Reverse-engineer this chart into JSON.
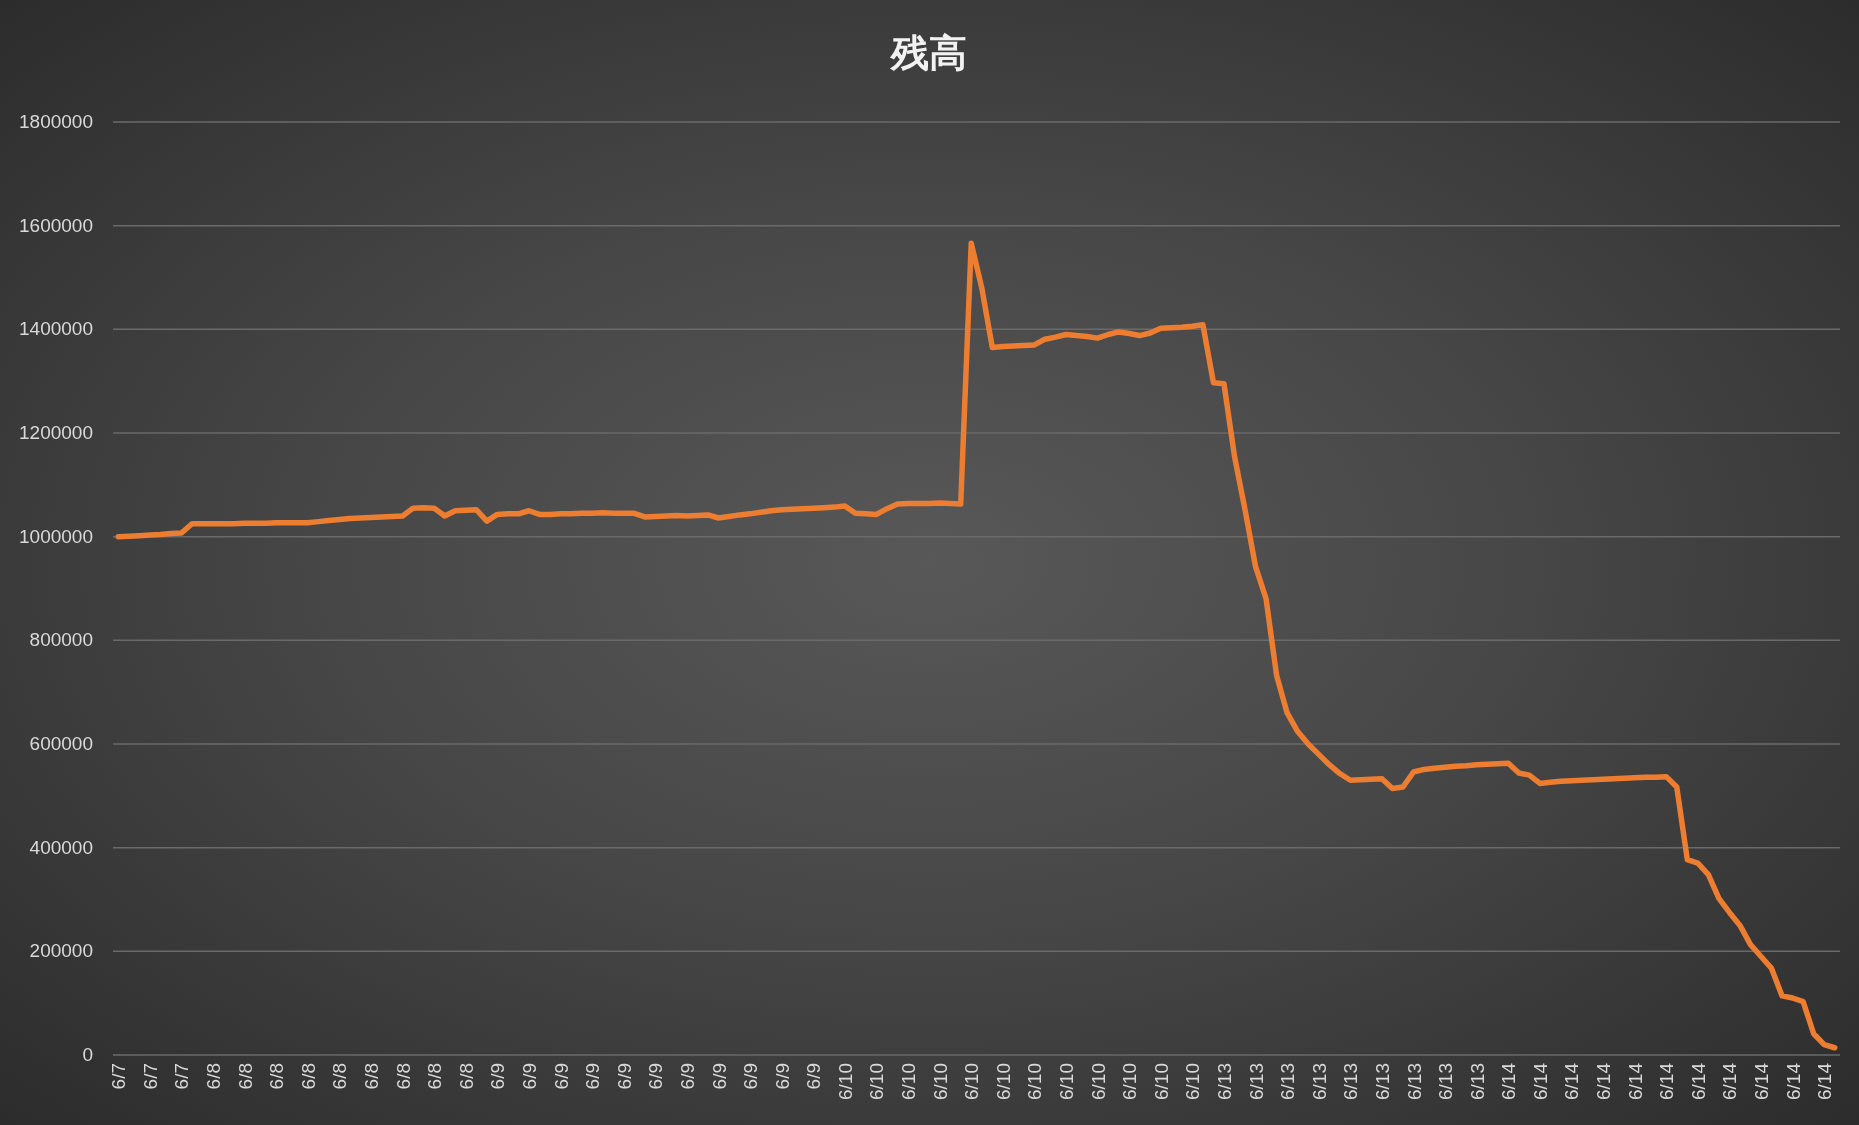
{
  "chart_data": {
    "type": "line",
    "title": "残高",
    "categories": [
      "6/7",
      null,
      null,
      "6/7",
      null,
      null,
      "6/7",
      null,
      null,
      "6/8",
      null,
      null,
      "6/8",
      null,
      null,
      "6/8",
      null,
      null,
      "6/8",
      null,
      null,
      "6/8",
      null,
      null,
      "6/8",
      null,
      null,
      "6/8",
      null,
      null,
      "6/8",
      null,
      null,
      "6/8",
      null,
      null,
      "6/9",
      null,
      null,
      "6/9",
      null,
      null,
      "6/9",
      null,
      null,
      "6/9",
      null,
      null,
      "6/9",
      null,
      null,
      "6/9",
      null,
      null,
      "6/9",
      null,
      null,
      "6/9",
      null,
      null,
      "6/9",
      null,
      null,
      "6/9",
      null,
      null,
      "6/9",
      null,
      null,
      "6/10",
      null,
      null,
      "6/10",
      null,
      null,
      "6/10",
      null,
      null,
      "6/10",
      null,
      null,
      "6/10",
      null,
      null,
      "6/10",
      null,
      null,
      "6/10",
      null,
      null,
      "6/10",
      null,
      null,
      "6/10",
      null,
      null,
      "6/10",
      null,
      null,
      "6/10",
      null,
      null,
      "6/10",
      null,
      null,
      "6/13",
      null,
      null,
      "6/13",
      null,
      null,
      "6/13",
      null,
      null,
      "6/13",
      null,
      null,
      "6/13",
      null,
      null,
      "6/13",
      null,
      null,
      "6/13",
      null,
      null,
      "6/13",
      null,
      null,
      "6/13",
      null,
      null,
      "6/14",
      null,
      null,
      "6/14",
      null,
      null,
      "6/14",
      null,
      null,
      "6/14",
      null,
      null,
      "6/14",
      null,
      null,
      "6/14",
      null,
      null,
      "6/14",
      null,
      null,
      "6/14",
      null,
      null,
      "6/14",
      null,
      null,
      "6/14",
      null,
      null,
      "6/14",
      null
    ],
    "values": [
      1000000,
      1001000,
      1002000,
      1003000,
      1004000,
      1006000,
      1007000,
      1025000,
      1025000,
      1025000,
      1025000,
      1025000,
      1026000,
      1026000,
      1026000,
      1027000,
      1027000,
      1027000,
      1027000,
      1029000,
      1031000,
      1033000,
      1035000,
      1036000,
      1037000,
      1038000,
      1039000,
      1040000,
      1055000,
      1056000,
      1055000,
      1040000,
      1050000,
      1051000,
      1052000,
      1030000,
      1043000,
      1044000,
      1044000,
      1050000,
      1043000,
      1043000,
      1044000,
      1044000,
      1045000,
      1045000,
      1046000,
      1045000,
      1045000,
      1045000,
      1038000,
      1039000,
      1040000,
      1041000,
      1040000,
      1041000,
      1042000,
      1036000,
      1039000,
      1042000,
      1044000,
      1047000,
      1050000,
      1052000,
      1053000,
      1054000,
      1055000,
      1056000,
      1057000,
      1059000,
      1045000,
      1044000,
      1043000,
      1054000,
      1063000,
      1064000,
      1064000,
      1064000,
      1065000,
      1064000,
      1063000,
      1566000,
      1480000,
      1365000,
      1367000,
      1368000,
      1369000,
      1370000,
      1381000,
      1385000,
      1390000,
      1388000,
      1386000,
      1383000,
      1390000,
      1395000,
      1392000,
      1388000,
      1393000,
      1402000,
      1403000,
      1404000,
      1406000,
      1409000,
      1297000,
      1295000,
      1155000,
      1052000,
      942000,
      880000,
      732000,
      660000,
      624000,
      600000,
      580000,
      560000,
      543000,
      530000,
      531000,
      532000,
      533000,
      514000,
      517000,
      546000,
      551000,
      553000,
      555000,
      557000,
      558000,
      560000,
      561000,
      562000,
      563000,
      544000,
      540000,
      524000,
      526000,
      528000,
      529000,
      530000,
      531000,
      532000,
      533000,
      534000,
      535000,
      536000,
      536000,
      537000,
      517000,
      377000,
      370000,
      348000,
      302000,
      275000,
      250000,
      213000,
      190000,
      167000,
      114000,
      110000,
      103000,
      41000,
      20000,
      14000
    ],
    "color": "#ed7d31",
    "ylim": [
      0,
      1800000
    ],
    "yticks": [
      0,
      200000,
      400000,
      600000,
      800000,
      1000000,
      1200000,
      1400000,
      1600000,
      1800000
    ],
    "grid": "y"
  }
}
